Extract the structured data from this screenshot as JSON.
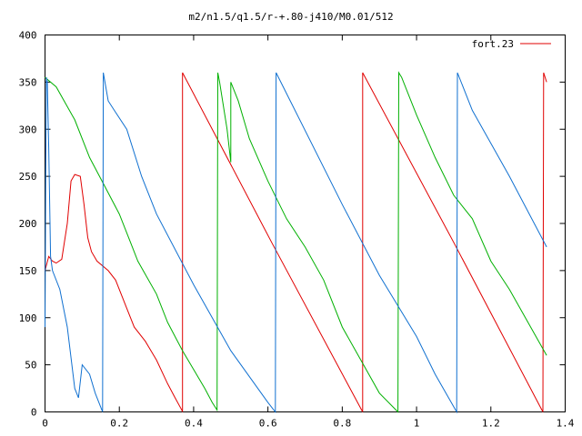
{
  "chart_data": {
    "type": "line",
    "title": "m2/n1.5/q1.5/r-+.80-j410/M0.01/512",
    "xlabel": "",
    "ylabel": "",
    "xlim": [
      0,
      1.4
    ],
    "ylim": [
      0,
      400
    ],
    "x_ticks": [
      "0",
      "0.2",
      "0.4",
      "0.6",
      "0.8",
      "1",
      "1.2",
      "1.4"
    ],
    "y_ticks": [
      "0",
      "50",
      "100",
      "150",
      "200",
      "250",
      "300",
      "350",
      "400"
    ],
    "grid": false,
    "legend": {
      "position": "top-right",
      "entries": [
        "fort.23"
      ]
    },
    "series": [
      {
        "name": "fort.23",
        "color": "#e00000",
        "x": [
          0.0,
          0.01,
          0.02,
          0.03,
          0.045,
          0.06,
          0.07,
          0.08,
          0.095,
          0.105,
          0.115,
          0.125,
          0.14,
          0.17,
          0.19,
          0.22,
          0.24,
          0.27,
          0.3,
          0.33,
          0.35,
          0.368,
          0.37,
          0.37,
          0.61,
          0.855,
          0.855,
          1.1,
          1.34,
          1.342,
          1.35
        ],
        "y": [
          150,
          165,
          160,
          158,
          162,
          200,
          245,
          252,
          250,
          220,
          185,
          170,
          160,
          150,
          140,
          110,
          90,
          75,
          55,
          30,
          15,
          2,
          0,
          360,
          180,
          0,
          360,
          180,
          0,
          360,
          350
        ]
      },
      {
        "color": "#00b000",
        "x": [
          0.0,
          0.03,
          0.08,
          0.12,
          0.16,
          0.2,
          0.23,
          0.25,
          0.3,
          0.33,
          0.35,
          0.37,
          0.4,
          0.43,
          0.45,
          0.463,
          0.465,
          0.47,
          0.49,
          0.5,
          0.5,
          0.52,
          0.55,
          0.6,
          0.65,
          0.7,
          0.75,
          0.8,
          0.85,
          0.9,
          0.95,
          0.952,
          0.96,
          1.0,
          1.05,
          1.1,
          1.15,
          1.2,
          1.25,
          1.3,
          1.35
        ],
        "y": [
          355,
          345,
          310,
          270,
          240,
          210,
          180,
          160,
          125,
          95,
          80,
          65,
          45,
          25,
          10,
          2,
          360,
          350,
          300,
          265,
          350,
          330,
          290,
          245,
          205,
          175,
          140,
          90,
          55,
          20,
          0,
          360,
          355,
          315,
          270,
          230,
          205,
          160,
          130,
          95,
          60
        ]
      },
      {
        "color": "#1070d0",
        "x": [
          0.0,
          0.002,
          0.004,
          0.006,
          0.01,
          0.015,
          0.02,
          0.04,
          0.06,
          0.08,
          0.09,
          0.1,
          0.12,
          0.135,
          0.15,
          0.155,
          0.157,
          0.17,
          0.19,
          0.22,
          0.26,
          0.3,
          0.4,
          0.5,
          0.6,
          0.62,
          0.622,
          0.66,
          0.8,
          0.9,
          1.0,
          1.05,
          1.108,
          1.11,
          1.15,
          1.25,
          1.35
        ],
        "y": [
          90,
          250,
          355,
          350,
          280,
          165,
          150,
          130,
          90,
          25,
          15,
          50,
          40,
          20,
          5,
          0,
          360,
          330,
          318,
          300,
          250,
          210,
          135,
          65,
          10,
          0,
          360,
          330,
          220,
          145,
          80,
          40,
          0,
          360,
          320,
          250,
          175
        ]
      }
    ]
  }
}
